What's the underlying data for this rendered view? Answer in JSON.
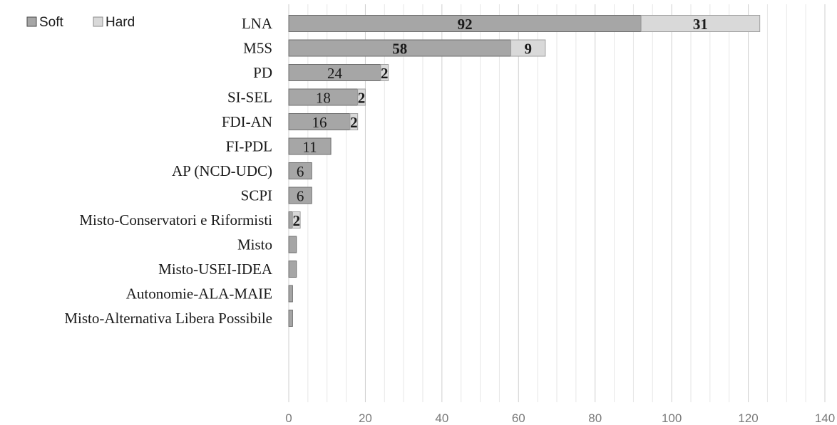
{
  "chart_data": {
    "type": "bar",
    "orientation": "horizontal",
    "stacked": true,
    "categories": [
      "LNA",
      "M5S",
      "PD",
      "SI-SEL",
      "FDI-AN",
      "FI-PDL",
      "AP (NCD-UDC)",
      "SCPI",
      "Misto-Conservatori e Riformisti",
      "Misto",
      "Misto-USEI-IDEA",
      "Autonomie-ALA-MAIE",
      "Misto-Alternativa Libera Possibile"
    ],
    "series": [
      {
        "name": "Soft",
        "values": [
          92,
          58,
          24,
          18,
          16,
          11,
          6,
          6,
          1,
          2,
          2,
          1,
          1
        ],
        "color": "#a6a6a6"
      },
      {
        "name": "Hard",
        "values": [
          31,
          9,
          2,
          2,
          2,
          0,
          0,
          0,
          2,
          0,
          0,
          0,
          0
        ],
        "color": "#d9d9d9"
      }
    ],
    "data_labels": {
      "Soft": [
        "92",
        "58",
        "24",
        "18",
        "16",
        "11",
        "6",
        "6",
        "",
        "",
        "",
        "",
        ""
      ],
      "Hard": [
        "31",
        "9",
        "2",
        "2",
        "2",
        "",
        "",
        "",
        "2",
        "",
        "",
        "",
        ""
      ]
    },
    "bold_soft_labels": [
      true,
      true,
      false,
      false,
      false,
      false,
      false,
      false,
      false,
      false,
      false,
      false,
      false
    ],
    "xlim": [
      0,
      140
    ],
    "xticks": [
      0,
      20,
      40,
      60,
      80,
      100,
      120,
      140
    ],
    "grid": true,
    "legend": {
      "position": "top-left",
      "entries": [
        "Soft",
        "Hard"
      ]
    }
  }
}
